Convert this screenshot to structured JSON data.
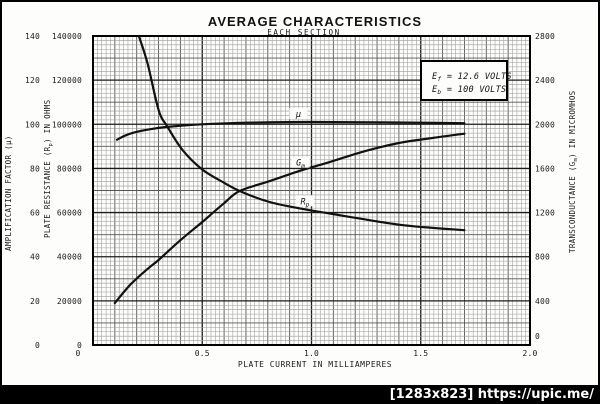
{
  "watermark": "[1283x823] https://upic.me/",
  "colors": {
    "curve": "#111111",
    "grid_fine": "#9b9b9b",
    "grid_mid": "#565656",
    "grid_major": "#1c1c1c",
    "frame": "#000000",
    "background": "#fdfdfb",
    "watermark_bg": "#000000",
    "watermark_text": "#ffffff"
  },
  "chart_data": {
    "type": "line",
    "title": "AVERAGE CHARACTERISTICS",
    "subtitle": "EACH SECTION",
    "conditions": [
      "E_{f} = 12.6 VOLTS",
      "E_{b} = 100 VOLTS"
    ],
    "xlabel": "PLATE CURRENT IN MILLIAMPERES",
    "xlim": [
      0,
      2.0
    ],
    "x_ticks": [
      {
        "value": 0,
        "label": "0"
      },
      {
        "value": 0.5,
        "label": "0.5"
      },
      {
        "value": 1.0,
        "label": "1.0"
      },
      {
        "value": 1.5,
        "label": "1.5"
      },
      {
        "value": 2.0,
        "label": "2.0"
      }
    ],
    "grid": {
      "x_minor": 0.02,
      "x_mid": 0.1,
      "x_major": 0.5,
      "y_minor_divisions": 70,
      "y_mid_every": 5,
      "y_major_every": 10,
      "style": "full engineering graph grid"
    },
    "axes": {
      "amplification": {
        "side": "left-outer",
        "label": "AMPLIFICATION FACTOR (μ)",
        "range": [
          0,
          140
        ],
        "ticks": [
          0,
          20,
          40,
          60,
          80,
          100,
          120,
          140
        ]
      },
      "plate_resistance": {
        "side": "left-inner",
        "label": "PLATE RESISTANCE (R_{p}) IN OHMS",
        "range": [
          0,
          140000
        ],
        "ticks": [
          0,
          20000,
          40000,
          60000,
          80000,
          100000,
          120000,
          140000
        ]
      },
      "transconductance": {
        "side": "right",
        "label": "TRANSCONDUCTANCE (G_{m}) IN MICROMHOS",
        "range": [
          0,
          2800
        ],
        "ticks": [
          0,
          400,
          800,
          1200,
          1600,
          2000,
          2400,
          2800
        ]
      }
    },
    "series": [
      {
        "name": "mu",
        "label": "μ",
        "axis": "amplification",
        "label_at_x": 0.94,
        "points": [
          [
            0.11,
            93
          ],
          [
            0.15,
            95
          ],
          [
            0.2,
            96.6
          ],
          [
            0.27,
            97.9
          ],
          [
            0.34,
            98.8
          ],
          [
            0.45,
            99.7
          ],
          [
            0.55,
            100.2
          ],
          [
            0.7,
            100.7
          ],
          [
            0.9,
            101
          ],
          [
            1.1,
            101
          ],
          [
            1.3,
            100.9
          ],
          [
            1.5,
            100.7
          ],
          [
            1.7,
            100.5
          ]
        ]
      },
      {
        "name": "gm",
        "label": "G_{m}",
        "axis": "transconductance",
        "label_at_x": 0.95,
        "points": [
          [
            0.1,
            380
          ],
          [
            0.17,
            545
          ],
          [
            0.25,
            690
          ],
          [
            0.3,
            770
          ],
          [
            0.4,
            950
          ],
          [
            0.5,
            1115
          ],
          [
            0.6,
            1285
          ],
          [
            0.67,
            1395
          ],
          [
            0.8,
            1480
          ],
          [
            0.95,
            1580
          ],
          [
            1.07,
            1650
          ],
          [
            1.25,
            1760
          ],
          [
            1.4,
            1830
          ],
          [
            1.55,
            1875
          ],
          [
            1.7,
            1915
          ]
        ]
      },
      {
        "name": "rp",
        "label": "R_{p}",
        "axis": "plate_resistance",
        "label_at_x": 0.97,
        "points": [
          [
            0.21,
            140000
          ],
          [
            0.25,
            127500
          ],
          [
            0.3,
            106500
          ],
          [
            0.34,
            99000
          ],
          [
            0.41,
            88300
          ],
          [
            0.5,
            79500
          ],
          [
            0.6,
            73500
          ],
          [
            0.67,
            69800
          ],
          [
            0.8,
            65000
          ],
          [
            0.95,
            61800
          ],
          [
            1.07,
            59800
          ],
          [
            1.25,
            56800
          ],
          [
            1.4,
            54500
          ],
          [
            1.55,
            53100
          ],
          [
            1.7,
            52000
          ]
        ]
      }
    ]
  }
}
